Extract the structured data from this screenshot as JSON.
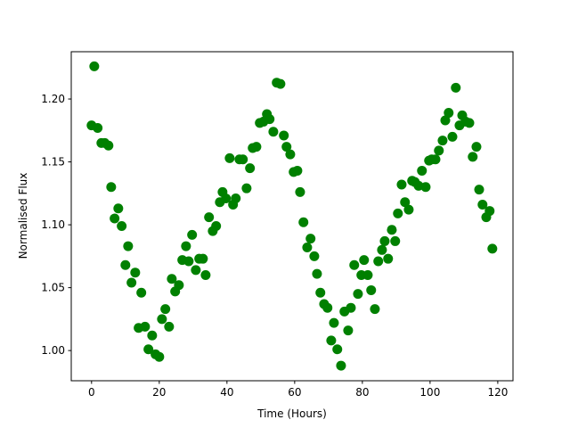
{
  "chart_data": {
    "type": "scatter",
    "xlabel": "Time (Hours)",
    "ylabel": "Normalised Flux",
    "color": "#008000",
    "xlim": [
      -6,
      124.5
    ],
    "ylim": [
      0.976,
      1.2376
    ],
    "xticks": [
      0,
      20,
      40,
      60,
      80,
      100,
      120
    ],
    "yticks": [
      {
        "value": 1.0,
        "label": "1.00"
      },
      {
        "value": 1.05,
        "label": "1.05"
      },
      {
        "value": 1.1,
        "label": "1.10"
      },
      {
        "value": 1.15,
        "label": "1.15"
      },
      {
        "value": 1.2,
        "label": "1.20"
      }
    ],
    "x": [
      0,
      0.8,
      1.8,
      2.9,
      3.9,
      5,
      5.8,
      6.8,
      7.9,
      8.9,
      10,
      10.8,
      11.8,
      12.9,
      13.9,
      14.7,
      15.8,
      16.8,
      17.9,
      18.9,
      20,
      20.8,
      21.8,
      22.9,
      23.7,
      24.7,
      25.8,
      26.8,
      27.9,
      28.7,
      29.7,
      30.8,
      31.8,
      32.9,
      33.7,
      34.7,
      35.8,
      36.8,
      37.9,
      38.7,
      39.7,
      40.8,
      41.8,
      42.6,
      43.7,
      44.7,
      45.8,
      46.8,
      47.6,
      48.7,
      49.7,
      50.8,
      51.8,
      52.6,
      53.7,
      54.7,
      55.8,
      56.8,
      57.6,
      58.7,
      59.7,
      60.8,
      61.6,
      62.6,
      63.7,
      64.7,
      65.8,
      66.6,
      67.6,
      68.7,
      69.7,
      70.8,
      71.6,
      72.6,
      73.7,
      74.7,
      75.8,
      76.6,
      77.6,
      78.7,
      79.7,
      80.5,
      81.6,
      82.6,
      83.7,
      84.7,
      85.8,
      86.6,
      87.6,
      88.7,
      89.7,
      90.5,
      91.6,
      92.6,
      93.7,
      94.7,
      95.5,
      96.6,
      97.6,
      98.7,
      99.7,
      100.5,
      101.6,
      102.6,
      103.7,
      104.5,
      105.5,
      106.6,
      107.6,
      108.7,
      109.5,
      110.5,
      111.6,
      112.6,
      113.7,
      114.5,
      115.5,
      116.6,
      117.6,
      118.4
    ],
    "values": [
      1.179,
      1.226,
      1.177,
      1.165,
      1.165,
      1.163,
      1.13,
      1.105,
      1.113,
      1.099,
      1.068,
      1.083,
      1.054,
      1.062,
      1.018,
      1.046,
      1.019,
      1.001,
      1.012,
      0.997,
      0.995,
      1.025,
      1.033,
      1.019,
      1.057,
      1.047,
      1.052,
      1.072,
      1.083,
      1.071,
      1.092,
      1.064,
      1.073,
      1.073,
      1.06,
      1.106,
      1.095,
      1.099,
      1.118,
      1.126,
      1.121,
      1.153,
      1.116,
      1.121,
      1.152,
      1.152,
      1.129,
      1.145,
      1.161,
      1.162,
      1.181,
      1.182,
      1.188,
      1.184,
      1.174,
      1.213,
      1.212,
      1.171,
      1.162,
      1.156,
      1.142,
      1.143,
      1.126,
      1.102,
      1.082,
      1.089,
      1.075,
      1.061,
      1.046,
      1.037,
      1.034,
      1.008,
      1.022,
      1.001,
      0.988,
      1.031,
      1.016,
      1.034,
      1.068,
      1.045,
      1.06,
      1.072,
      1.06,
      1.048,
      1.033,
      1.071,
      1.08,
      1.087,
      1.073,
      1.096,
      1.087,
      1.109,
      1.132,
      1.118,
      1.112,
      1.135,
      1.134,
      1.131,
      1.143,
      1.13,
      1.151,
      1.152,
      1.152,
      1.159,
      1.167,
      1.183,
      1.189,
      1.17,
      1.209,
      1.179,
      1.187,
      1.182,
      1.181,
      1.154,
      1.162,
      1.128,
      1.116,
      1.106,
      1.111,
      1.081
    ]
  }
}
